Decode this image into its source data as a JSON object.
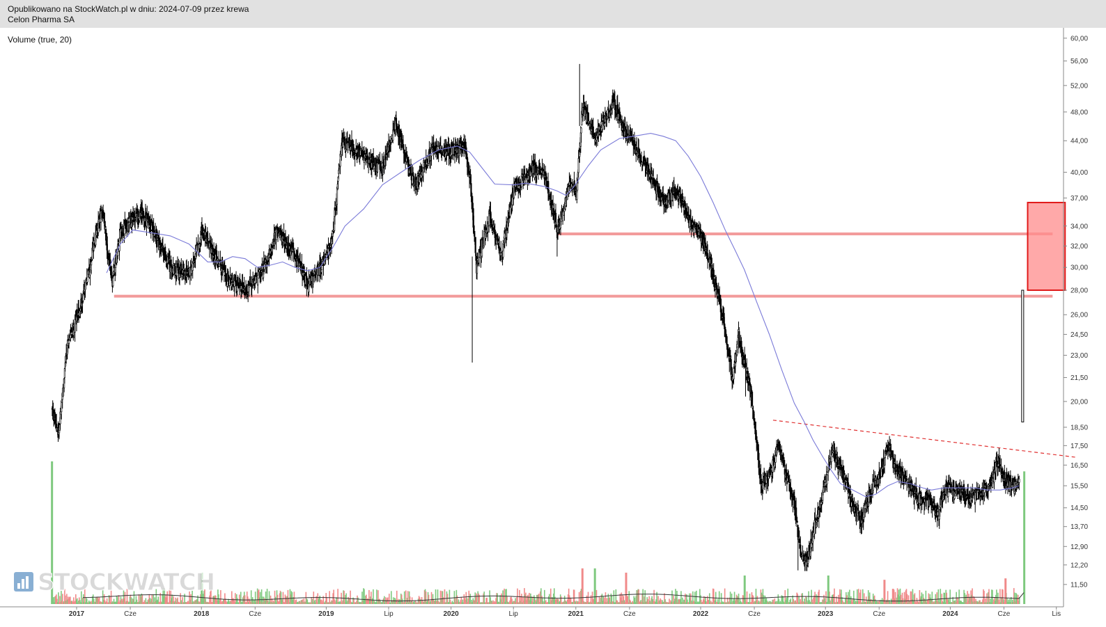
{
  "header": {
    "published_line": "Opublikowano na StockWatch.pl w dniu: 2024-07-09 przez krewa",
    "company_name": "Celon Pharma SA"
  },
  "indicator_label": "Volume (true, 20)",
  "watermark": {
    "text": "STOCKWATCH",
    "icon": "bar-chart-icon"
  },
  "colors": {
    "candle": "#000000",
    "ma": "#7a7ad8",
    "level": "#f29a9a",
    "zone": "#ff8c8c",
    "zone_border": "#e01818",
    "trend": "#e03030",
    "vol_up": "#7fc97f",
    "vol_down": "#f08a8a",
    "vol_ma": "#333333"
  },
  "chart_data": {
    "type": "candlestick",
    "log_scale": true,
    "ylim": [
      11.0,
      61.0
    ],
    "y_ticks": [
      "11,50",
      "12,20",
      "12,90",
      "13,70",
      "14,50",
      "15,50",
      "16,50",
      "17,50",
      "18,50",
      "20,00",
      "21,50",
      "23,00",
      "24,50",
      "26,00",
      "28,00",
      "30,00",
      "32,00",
      "34,00",
      "37,00",
      "40,00",
      "44,00",
      "48,00",
      "52,00",
      "56,00",
      "60,00"
    ],
    "x_ticks": [
      {
        "label": "2017",
        "t": 0.0,
        "year": true
      },
      {
        "label": "Cze",
        "t": 0.43,
        "year": false
      },
      {
        "label": "2018",
        "t": 1.0,
        "year": true
      },
      {
        "label": "Cze",
        "t": 1.43,
        "year": false
      },
      {
        "label": "2019",
        "t": 2.0,
        "year": true
      },
      {
        "label": "Lip",
        "t": 2.5,
        "year": false
      },
      {
        "label": "2020",
        "t": 3.0,
        "year": true
      },
      {
        "label": "Lip",
        "t": 3.5,
        "year": false
      },
      {
        "label": "2021",
        "t": 4.0,
        "year": true
      },
      {
        "label": "Cze",
        "t": 4.43,
        "year": false
      },
      {
        "label": "2022",
        "t": 5.0,
        "year": true
      },
      {
        "label": "Cze",
        "t": 5.43,
        "year": false
      },
      {
        "label": "2023",
        "t": 6.0,
        "year": true
      },
      {
        "label": "Cze",
        "t": 6.43,
        "year": false
      },
      {
        "label": "2024",
        "t": 7.0,
        "year": true
      },
      {
        "label": "Cze",
        "t": 7.43,
        "year": false
      },
      {
        "label": "Lis",
        "t": 7.85,
        "year": false
      }
    ],
    "price_path": [
      [
        -0.2,
        19.5
      ],
      [
        -0.15,
        18.2
      ],
      [
        -0.08,
        23.5
      ],
      [
        0.05,
        27.5
      ],
      [
        0.2,
        36.0
      ],
      [
        0.28,
        28.5
      ],
      [
        0.35,
        33.5
      ],
      [
        0.5,
        35.5
      ],
      [
        0.6,
        34.0
      ],
      [
        0.75,
        30.0
      ],
      [
        0.9,
        29.5
      ],
      [
        1.0,
        33.5
      ],
      [
        1.2,
        29.0
      ],
      [
        1.35,
        28.0
      ],
      [
        1.5,
        30.0
      ],
      [
        1.6,
        33.5
      ],
      [
        1.75,
        31.0
      ],
      [
        1.85,
        28.5
      ],
      [
        1.95,
        30.0
      ],
      [
        2.05,
        33.0
      ],
      [
        2.12,
        44.0
      ],
      [
        2.3,
        42.0
      ],
      [
        2.45,
        40.5
      ],
      [
        2.55,
        46.5
      ],
      [
        2.7,
        38.5
      ],
      [
        2.85,
        43.0
      ],
      [
        3.0,
        42.5
      ],
      [
        3.1,
        43.5
      ],
      [
        3.15,
        39.0
      ],
      [
        3.2,
        30.0
      ],
      [
        3.3,
        35.0
      ],
      [
        3.4,
        31.0
      ],
      [
        3.5,
        38.0
      ],
      [
        3.65,
        40.5
      ],
      [
        3.75,
        39.5
      ],
      [
        3.85,
        33.5
      ],
      [
        3.95,
        39.0
      ],
      [
        4.0,
        37.5
      ],
      [
        4.05,
        49.0
      ],
      [
        4.15,
        44.5
      ],
      [
        4.3,
        49.5
      ],
      [
        4.4,
        45.0
      ],
      [
        4.55,
        41.0
      ],
      [
        4.7,
        36.5
      ],
      [
        4.8,
        38.0
      ],
      [
        4.9,
        34.5
      ],
      [
        5.0,
        33.0
      ],
      [
        5.08,
        30.0
      ],
      [
        5.18,
        25.5
      ],
      [
        5.25,
        21.5
      ],
      [
        5.3,
        24.5
      ],
      [
        5.4,
        20.5
      ],
      [
        5.48,
        15.5
      ],
      [
        5.55,
        16.0
      ],
      [
        5.62,
        17.5
      ],
      [
        5.68,
        16.0
      ],
      [
        5.75,
        14.5
      ],
      [
        5.8,
        12.5
      ],
      [
        5.85,
        12.3
      ],
      [
        5.9,
        13.6
      ],
      [
        5.95,
        14.6
      ],
      [
        6.0,
        15.8
      ],
      [
        6.05,
        17.3
      ],
      [
        6.15,
        15.8
      ],
      [
        6.22,
        14.6
      ],
      [
        6.28,
        14.0
      ],
      [
        6.35,
        15.2
      ],
      [
        6.43,
        16.0
      ],
      [
        6.5,
        17.5
      ],
      [
        6.55,
        16.5
      ],
      [
        6.62,
        15.9
      ],
      [
        6.72,
        15.1
      ],
      [
        6.82,
        14.8
      ],
      [
        6.9,
        14.2
      ],
      [
        6.95,
        15.4
      ],
      [
        7.05,
        15.2
      ],
      [
        7.15,
        15.0
      ],
      [
        7.25,
        15.2
      ],
      [
        7.32,
        15.5
      ],
      [
        7.38,
        16.8
      ],
      [
        7.42,
        15.8
      ],
      [
        7.5,
        15.5
      ],
      [
        7.55,
        15.7
      ]
    ],
    "spike_candle": {
      "t": 7.58,
      "open": 18.8,
      "close": 28.0
    },
    "ma_path": [
      [
        0.24,
        29.5
      ],
      [
        0.35,
        32.2
      ],
      [
        0.45,
        33.6
      ],
      [
        0.6,
        33.3
      ],
      [
        0.75,
        33.0
      ],
      [
        0.9,
        32.2
      ],
      [
        1.05,
        30.5
      ],
      [
        1.15,
        30.5
      ],
      [
        1.25,
        31.0
      ],
      [
        1.35,
        30.8
      ],
      [
        1.45,
        30.0
      ],
      [
        1.55,
        30.2
      ],
      [
        1.65,
        30.5
      ],
      [
        1.75,
        30.0
      ],
      [
        1.85,
        29.7
      ],
      [
        1.95,
        30.0
      ],
      [
        2.05,
        31.8
      ],
      [
        2.15,
        34.0
      ],
      [
        2.3,
        35.8
      ],
      [
        2.45,
        38.5
      ],
      [
        2.6,
        40.0
      ],
      [
        2.75,
        41.5
      ],
      [
        2.9,
        42.8
      ],
      [
        3.05,
        43.3
      ],
      [
        3.15,
        42.5
      ],
      [
        3.25,
        40.5
      ],
      [
        3.35,
        38.6
      ],
      [
        3.5,
        38.5
      ],
      [
        3.6,
        38.7
      ],
      [
        3.75,
        38.3
      ],
      [
        3.85,
        37.8
      ],
      [
        3.92,
        37.3
      ],
      [
        3.98,
        38.2
      ],
      [
        4.1,
        40.8
      ],
      [
        4.2,
        42.8
      ],
      [
        4.35,
        44.3
      ],
      [
        4.5,
        44.7
      ],
      [
        4.6,
        45.0
      ],
      [
        4.7,
        44.6
      ],
      [
        4.8,
        44.0
      ],
      [
        4.9,
        42.0
      ],
      [
        5.0,
        39.5
      ],
      [
        5.1,
        36.5
      ],
      [
        5.2,
        33.5
      ],
      [
        5.28,
        31.5
      ],
      [
        5.35,
        29.8
      ],
      [
        5.45,
        27.0
      ],
      [
        5.55,
        24.5
      ],
      [
        5.65,
        22.0
      ],
      [
        5.75,
        19.9
      ],
      [
        5.83,
        18.8
      ],
      [
        5.9,
        17.8
      ],
      [
        5.98,
        16.9
      ],
      [
        6.05,
        16.2
      ],
      [
        6.12,
        15.6
      ],
      [
        6.22,
        15.3
      ],
      [
        6.32,
        15.0
      ],
      [
        6.4,
        15.1
      ],
      [
        6.5,
        15.5
      ],
      [
        6.58,
        15.7
      ],
      [
        6.68,
        15.6
      ],
      [
        6.78,
        15.4
      ],
      [
        6.85,
        15.3
      ],
      [
        6.95,
        15.4
      ],
      [
        7.05,
        15.4
      ],
      [
        7.2,
        15.4
      ],
      [
        7.3,
        15.3
      ],
      [
        7.4,
        15.3
      ],
      [
        7.5,
        15.4
      ],
      [
        7.55,
        15.5
      ]
    ],
    "levels": [
      {
        "price": 27.5,
        "t_start": 0.3,
        "t_end": 7.82
      },
      {
        "price": 33.2,
        "t_start": 3.85,
        "t_end": 7.82
      }
    ],
    "target_zone": {
      "price_low": 28.0,
      "price_high": 36.5,
      "t_start": 7.62,
      "t_end": 7.92
    },
    "trendline": {
      "t_start": 5.58,
      "price_start": 18.9,
      "t_end": 8.0,
      "price_end": 16.9
    },
    "volume_bars": [
      {
        "t": -0.2,
        "v": 1.0,
        "up": true
      },
      {
        "t": 7.59,
        "v": 0.93,
        "up": true
      },
      {
        "t": 1.0,
        "v": 0.22,
        "up": true
      },
      {
        "t": 4.05,
        "v": 0.25,
        "up": false
      },
      {
        "t": 4.15,
        "v": 0.25,
        "up": true
      },
      {
        "t": 4.4,
        "v": 0.22,
        "up": false
      },
      {
        "t": 5.35,
        "v": 0.2,
        "up": true
      },
      {
        "t": 6.02,
        "v": 0.2,
        "up": true
      },
      {
        "t": 6.47,
        "v": 0.17,
        "up": false
      },
      {
        "t": 7.44,
        "v": 0.18,
        "up": false
      }
    ],
    "volume_noise_max": 0.1
  }
}
